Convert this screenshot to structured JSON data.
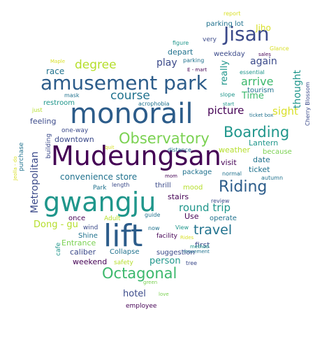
{
  "palette": {
    "dark_purple": "#440154",
    "indigo": "#3b4a8a",
    "slate_blue": "#2c5c8a",
    "teal_blue": "#21728e",
    "teal": "#1f968b",
    "green": "#3cb86c",
    "light_green": "#7ad151",
    "yellow_green": "#b5de2b",
    "yellow": "#d9e02a",
    "gray_purple": "#5a4c8a"
  },
  "words": [
    {
      "text": "monorail",
      "color": "slate_blue"
    },
    {
      "text": "Mudeungsan",
      "color": "dark_purple"
    },
    {
      "text": "gwangju",
      "color": "teal"
    },
    {
      "text": "lift",
      "color": "slate_blue"
    },
    {
      "text": "amusement park",
      "color": "slate_blue"
    },
    {
      "text": "Observatory",
      "color": "light_green"
    },
    {
      "text": "Boarding",
      "color": "teal"
    },
    {
      "text": "Jisan",
      "color": "indigo"
    },
    {
      "text": "Riding",
      "color": "slate_blue"
    },
    {
      "text": "Octagonal",
      "color": "green"
    },
    {
      "text": "travel",
      "color": "teal_blue"
    },
    {
      "text": "course",
      "color": "teal_blue"
    },
    {
      "text": "degree",
      "color": "yellow_green"
    },
    {
      "text": "picture",
      "color": "dark_purple"
    },
    {
      "text": "sight",
      "color": "yellow"
    },
    {
      "text": "arrive",
      "color": "green"
    },
    {
      "text": "round trip",
      "color": "teal"
    },
    {
      "text": "again",
      "color": "indigo"
    },
    {
      "text": "thought",
      "color": "teal"
    },
    {
      "text": "convenience store",
      "color": "teal_blue"
    },
    {
      "text": "Metropolitan",
      "color": "indigo"
    },
    {
      "text": "Dong - gu",
      "color": "yellow_green"
    },
    {
      "text": "person",
      "color": "teal"
    },
    {
      "text": "hotel",
      "color": "indigo"
    },
    {
      "text": "play",
      "color": "indigo"
    },
    {
      "text": "really",
      "color": "teal"
    },
    {
      "text": "Time",
      "color": "green"
    },
    {
      "text": "Jiho",
      "color": "yellow"
    },
    {
      "text": "race",
      "color": "teal_blue"
    },
    {
      "text": "feeling",
      "color": "indigo"
    },
    {
      "text": "stairs",
      "color": "dark_purple"
    },
    {
      "text": "visit",
      "color": "dark_purple"
    },
    {
      "text": "date",
      "color": "teal_blue"
    },
    {
      "text": "ticket",
      "color": "teal_blue"
    },
    {
      "text": "Lantern",
      "color": "teal"
    },
    {
      "text": "because",
      "color": "light_green"
    },
    {
      "text": "weather",
      "color": "yellow_green"
    },
    {
      "text": "downtown",
      "color": "indigo"
    },
    {
      "text": "tourism",
      "color": "teal_blue"
    },
    {
      "text": "depart",
      "color": "teal_blue"
    },
    {
      "text": "parking lot",
      "color": "teal_blue"
    },
    {
      "text": "weekday",
      "color": "indigo"
    },
    {
      "text": "Use",
      "color": "dark_purple"
    },
    {
      "text": "operate",
      "color": "teal_blue"
    },
    {
      "text": "first",
      "color": "indigo"
    },
    {
      "text": "caliber",
      "color": "indigo"
    },
    {
      "text": "weekend",
      "color": "dark_purple"
    },
    {
      "text": "mood",
      "color": "yellow_green"
    },
    {
      "text": "Entrance",
      "color": "light_green"
    },
    {
      "text": "Shine",
      "color": "teal_blue"
    },
    {
      "text": "suggestion",
      "color": "indigo"
    },
    {
      "text": "Collapse",
      "color": "teal_blue"
    },
    {
      "text": "package",
      "color": "teal_blue"
    },
    {
      "text": "thrill",
      "color": "indigo"
    },
    {
      "text": "once",
      "color": "dark_purple"
    },
    {
      "text": "restroom",
      "color": "teal"
    },
    {
      "text": "safety",
      "color": "yellow_green"
    },
    {
      "text": "Park",
      "color": "teal_blue"
    },
    {
      "text": "employee",
      "color": "dark_purple"
    },
    {
      "text": "very",
      "color": "indigo"
    },
    {
      "text": "report",
      "color": "yellow"
    },
    {
      "text": "figure",
      "color": "teal"
    },
    {
      "text": "Maple",
      "color": "yellow"
    },
    {
      "text": "parking",
      "color": "teal_blue"
    },
    {
      "text": "E - mart",
      "color": "dark_purple"
    },
    {
      "text": "Glance",
      "color": "yellow"
    },
    {
      "text": "sales",
      "color": "dark_purple"
    },
    {
      "text": "essential",
      "color": "teal"
    },
    {
      "text": "slope",
      "color": "teal"
    },
    {
      "text": "mask",
      "color": "teal_blue"
    },
    {
      "text": "acrophobia",
      "color": "teal_blue"
    },
    {
      "text": "ticket box",
      "color": "teal_blue"
    },
    {
      "text": "start",
      "color": "teal"
    },
    {
      "text": "Cherry Blossom",
      "color": "indigo"
    },
    {
      "text": "just",
      "color": "yellow_green"
    },
    {
      "text": "one-way",
      "color": "indigo"
    },
    {
      "text": "building",
      "color": "indigo"
    },
    {
      "text": "purchase",
      "color": "teal_blue"
    },
    {
      "text": "Jeolla - do",
      "color": "yellow"
    },
    {
      "text": "quit",
      "color": "yellow"
    },
    {
      "text": "distance",
      "color": "teal_blue"
    },
    {
      "text": "mom",
      "color": "dark_purple"
    },
    {
      "text": "normal",
      "color": "teal_blue"
    },
    {
      "text": "autumn",
      "color": "teal_blue"
    },
    {
      "text": "length",
      "color": "indigo"
    },
    {
      "text": "review",
      "color": "indigo"
    },
    {
      "text": "guide",
      "color": "teal_blue"
    },
    {
      "text": "Adult",
      "color": "yellow_green"
    },
    {
      "text": "wind",
      "color": "indigo"
    },
    {
      "text": "facility",
      "color": "dark_purple"
    },
    {
      "text": "now",
      "color": "teal_blue"
    },
    {
      "text": "View",
      "color": "teal"
    },
    {
      "text": "Rides",
      "color": "yellow"
    },
    {
      "text": "method",
      "color": "teal"
    },
    {
      "text": "cafe",
      "color": "teal"
    },
    {
      "text": "tree",
      "color": "indigo"
    },
    {
      "text": "movement",
      "color": "teal_blue"
    },
    {
      "text": "green",
      "color": "light_green"
    },
    {
      "text": "love",
      "color": "light_green"
    }
  ]
}
